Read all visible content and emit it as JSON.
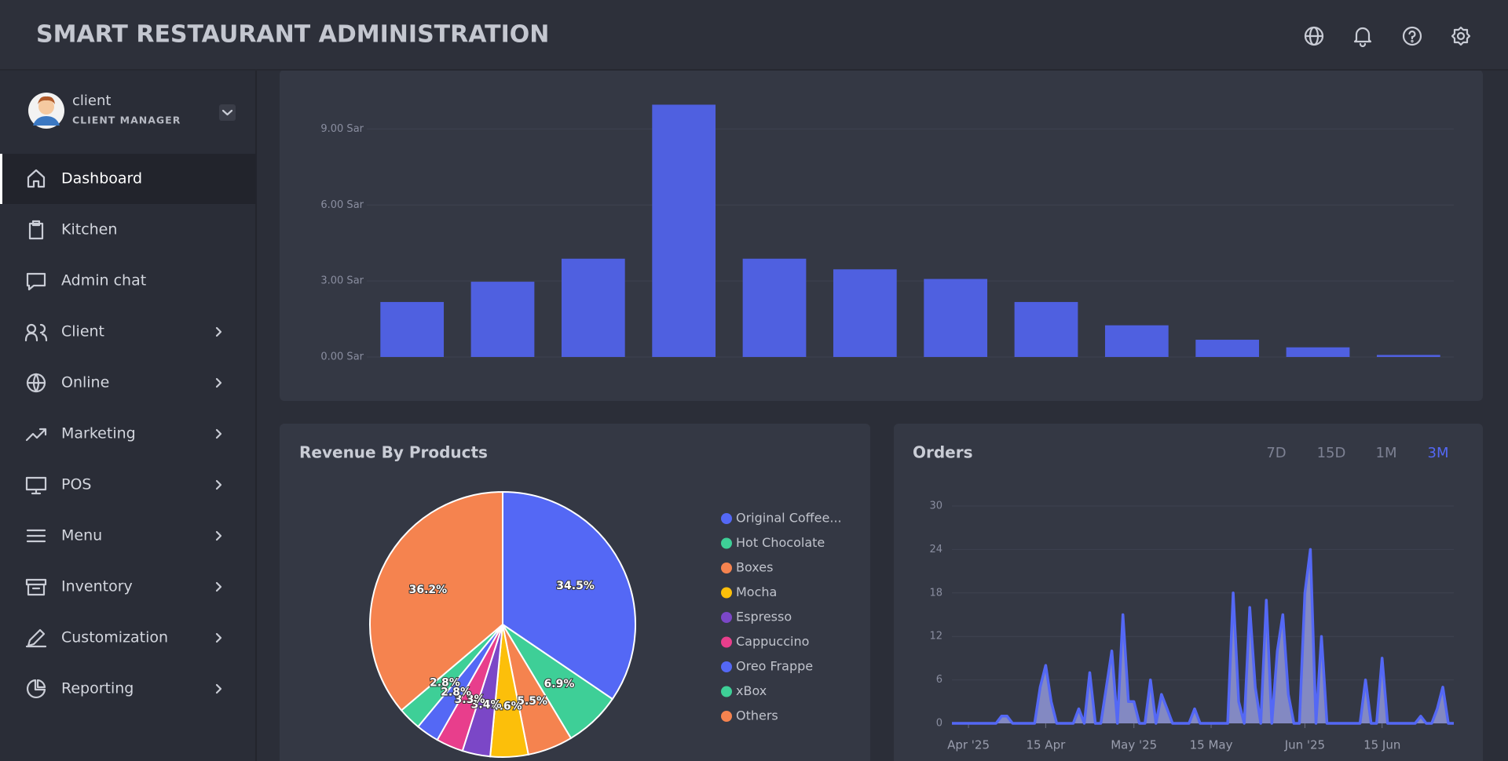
{
  "header": {
    "title": "SMART RESTAURANT ADMINISTRATION"
  },
  "sidebar": {
    "user": {
      "name": "client",
      "role": "CLIENT MANAGER"
    },
    "items": [
      {
        "label": "Dashboard",
        "expandable": false,
        "active": true
      },
      {
        "label": "Kitchen",
        "expandable": false,
        "active": false
      },
      {
        "label": "Admin chat",
        "expandable": false,
        "active": false
      },
      {
        "label": "Client",
        "expandable": true,
        "active": false
      },
      {
        "label": "Online",
        "expandable": true,
        "active": false
      },
      {
        "label": "Marketing",
        "expandable": true,
        "active": false
      },
      {
        "label": "POS",
        "expandable": true,
        "active": false
      },
      {
        "label": "Menu",
        "expandable": true,
        "active": false
      },
      {
        "label": "Inventory",
        "expandable": true,
        "active": false
      },
      {
        "label": "Customization",
        "expandable": true,
        "active": false
      },
      {
        "label": "Reporting",
        "expandable": true,
        "active": false
      }
    ]
  },
  "chart_data": [
    {
      "type": "bar",
      "color": "#4f60e0",
      "categories": [
        null,
        null,
        null,
        null,
        null,
        null,
        null,
        null,
        null,
        null,
        null,
        null
      ],
      "values": [
        2.17,
        2.97,
        3.88,
        9.96,
        3.88,
        3.46,
        3.08,
        2.17,
        1.25,
        0.68,
        0.38,
        0.08
      ],
      "ylim": [
        0,
        10.5
      ],
      "yticks": [
        {
          "value": 0,
          "label": "0.00 Sar"
        },
        {
          "value": 3,
          "label": "3.00 Sar"
        },
        {
          "value": 6,
          "label": "6.00 Sar"
        },
        {
          "value": 9,
          "label": "9.00 Sar"
        }
      ],
      "grid": true
    },
    {
      "type": "pie",
      "title": "Revenue By Products",
      "categories": [
        "Original Coffee...",
        "Hot Chocolate",
        "Boxes",
        "Mocha",
        "Espresso",
        "Cappuccino",
        "Oreo Frappe",
        "xBox",
        "Others"
      ],
      "values": [
        34.5,
        6.9,
        5.5,
        4.6,
        3.4,
        3.3,
        2.8,
        2.8,
        36.2
      ],
      "value_labels": [
        "34.5%",
        "6.9%",
        "5.5%",
        "4.6%",
        "3.4%",
        "3.3%",
        "2.8%",
        "2.8%",
        "36.2%"
      ],
      "colors": [
        "#5468f5",
        "#3ecf97",
        "#f5834f",
        "#fcbf0a",
        "#7b47c7",
        "#e83e8c",
        "#5468f5",
        "#3ecf97",
        "#f5834f"
      ],
      "legend": "right"
    },
    {
      "type": "area",
      "title": "Orders",
      "periods": [
        "7D",
        "15D",
        "1M",
        "3M"
      ],
      "active_period": "3M",
      "color": "#5468f5",
      "fill": "#9298d8",
      "x": [
        "2025-03-29",
        "2025-03-30",
        "2025-03-31",
        "2025-04-01",
        "2025-04-02",
        "2025-04-03",
        "2025-04-04",
        "2025-04-05",
        "2025-04-06",
        "2025-04-07",
        "2025-04-08",
        "2025-04-09",
        "2025-04-10",
        "2025-04-11",
        "2025-04-12",
        "2025-04-13",
        "2025-04-14",
        "2025-04-15",
        "2025-04-16",
        "2025-04-17",
        "2025-04-18",
        "2025-04-19",
        "2025-04-20",
        "2025-04-21",
        "2025-04-22",
        "2025-04-23",
        "2025-04-24",
        "2025-04-25",
        "2025-04-26",
        "2025-04-27",
        "2025-04-28",
        "2025-04-29",
        "2025-04-30",
        "2025-05-01",
        "2025-05-02",
        "2025-05-03",
        "2025-05-04",
        "2025-05-05",
        "2025-05-06",
        "2025-05-07",
        "2025-05-08",
        "2025-05-09",
        "2025-05-10",
        "2025-05-11",
        "2025-05-12",
        "2025-05-13",
        "2025-05-14",
        "2025-05-15",
        "2025-05-16",
        "2025-05-17",
        "2025-05-18",
        "2025-05-19",
        "2025-05-20",
        "2025-05-21",
        "2025-05-22",
        "2025-05-23",
        "2025-05-24",
        "2025-05-25",
        "2025-05-26",
        "2025-05-27",
        "2025-05-28",
        "2025-05-29",
        "2025-05-30",
        "2025-05-31",
        "2025-06-01",
        "2025-06-02",
        "2025-06-03",
        "2025-06-04",
        "2025-06-05",
        "2025-06-06",
        "2025-06-07",
        "2025-06-08",
        "2025-06-09",
        "2025-06-10",
        "2025-06-11",
        "2025-06-12",
        "2025-06-13",
        "2025-06-14",
        "2025-06-15",
        "2025-06-16",
        "2025-06-17",
        "2025-06-18",
        "2025-06-19",
        "2025-06-20",
        "2025-06-21",
        "2025-06-22",
        "2025-06-23",
        "2025-06-24",
        "2025-06-25",
        "2025-06-26",
        "2025-06-27",
        "2025-06-28"
      ],
      "values": [
        0,
        0,
        0,
        0,
        0,
        0,
        0,
        0,
        0,
        1,
        1,
        0,
        0,
        0,
        0,
        0,
        5,
        8,
        3,
        0,
        0,
        0,
        0,
        2,
        0,
        7,
        0,
        0,
        5,
        10,
        0,
        15,
        3,
        3,
        0,
        0,
        6,
        0,
        4,
        2,
        0,
        0,
        0,
        0,
        2,
        0,
        0,
        0,
        0,
        0,
        0,
        18,
        3,
        0,
        16,
        5,
        0,
        17,
        0,
        10,
        15,
        4,
        0,
        0,
        18,
        24,
        0,
        12,
        0,
        0,
        0,
        0,
        0,
        0,
        0,
        6,
        0,
        0,
        9,
        0,
        0,
        0,
        0,
        0,
        0,
        1,
        0,
        0,
        2,
        5,
        0,
        0
      ],
      "xlim": [
        "2025-03-29",
        "2025-06-28"
      ],
      "xticks": [
        {
          "value": "2025-04-01",
          "label": "Apr '25"
        },
        {
          "value": "2025-04-15",
          "label": "15 Apr"
        },
        {
          "value": "2025-05-01",
          "label": "May '25"
        },
        {
          "value": "2025-05-15",
          "label": "15 May"
        },
        {
          "value": "2025-06-01",
          "label": "Jun '25"
        },
        {
          "value": "2025-06-15",
          "label": "15 Jun"
        }
      ],
      "ylim": [
        0,
        30
      ],
      "yticks": [
        0,
        6,
        12,
        18,
        24,
        30
      ],
      "grid": true
    }
  ]
}
